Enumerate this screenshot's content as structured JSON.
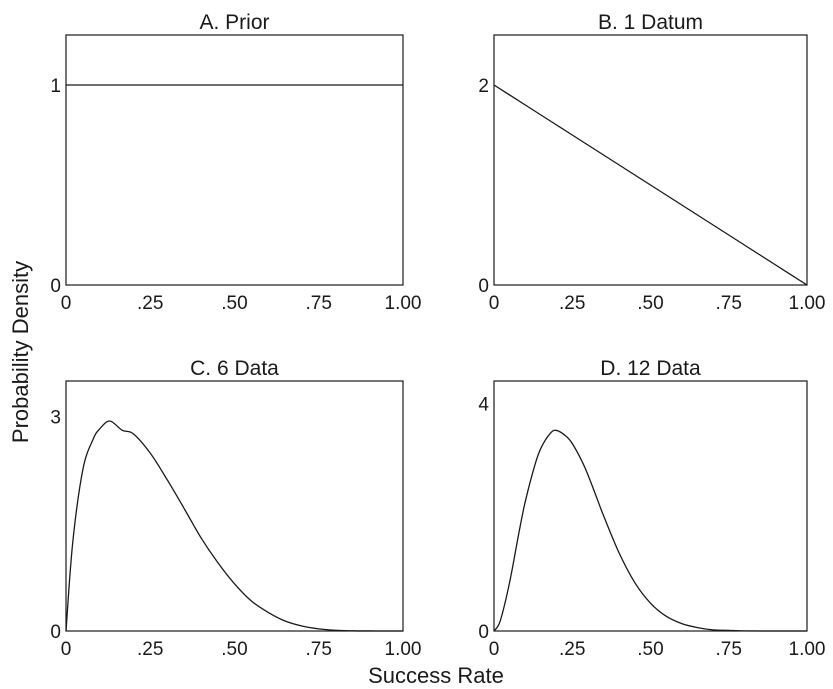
{
  "figure": {
    "ylabel": "Probability Density",
    "xlabel": "Success Rate"
  },
  "chart_data": [
    {
      "type": "line",
      "title": "A. Prior",
      "xlim": [
        0,
        1
      ],
      "ylim": [
        0,
        1.25
      ],
      "x_ticks": [
        0,
        0.25,
        0.5,
        0.75,
        1.0
      ],
      "x_tick_labels": [
        "0",
        ".25",
        ".50",
        ".75",
        "1.00"
      ],
      "y_ticks": [
        0,
        1
      ],
      "y_tick_labels": [
        "0",
        "1"
      ],
      "series": [
        {
          "x": [
            0,
            0.1,
            0.2,
            0.3,
            0.4,
            0.5,
            0.6,
            0.7,
            0.8,
            0.9,
            1.0
          ],
          "y": [
            1,
            1,
            1,
            1,
            1,
            1,
            1,
            1,
            1,
            1,
            1
          ]
        }
      ]
    },
    {
      "type": "line",
      "title": "B. 1 Datum",
      "xlim": [
        0,
        1
      ],
      "ylim": [
        0,
        2.5
      ],
      "x_ticks": [
        0,
        0.25,
        0.5,
        0.75,
        1.0
      ],
      "x_tick_labels": [
        "0",
        ".25",
        ".50",
        ".75",
        "1.00"
      ],
      "y_ticks": [
        0,
        2
      ],
      "y_tick_labels": [
        "0",
        "2"
      ],
      "series": [
        {
          "x": [
            0,
            0.1,
            0.2,
            0.3,
            0.4,
            0.5,
            0.6,
            0.7,
            0.8,
            0.9,
            1.0
          ],
          "y": [
            2.0,
            1.8,
            1.6,
            1.4,
            1.2,
            1.0,
            0.8,
            0.6,
            0.4,
            0.2,
            0.0
          ]
        }
      ]
    },
    {
      "type": "line",
      "title": "C. 6 Data",
      "xlim": [
        0,
        1
      ],
      "ylim": [
        0,
        3.5
      ],
      "x_ticks": [
        0,
        0.25,
        0.5,
        0.75,
        1.0
      ],
      "x_tick_labels": [
        "0",
        ".25",
        ".50",
        ".75",
        "1.00"
      ],
      "y_ticks": [
        0,
        3
      ],
      "y_tick_labels": [
        "0",
        "3"
      ],
      "series": [
        {
          "x": [
            0,
            0.02,
            0.05,
            0.08,
            0.1,
            0.13,
            0.167,
            0.2,
            0.25,
            0.3,
            0.35,
            0.4,
            0.45,
            0.5,
            0.55,
            0.6,
            0.65,
            0.7,
            0.75,
            0.8,
            0.85,
            0.9,
            0.95,
            1.0
          ],
          "y": [
            0,
            1.24,
            2.26,
            2.68,
            2.83,
            2.94,
            2.81,
            2.76,
            2.49,
            2.12,
            1.72,
            1.31,
            0.96,
            0.66,
            0.42,
            0.26,
            0.14,
            0.07,
            0.03,
            0.01,
            0.003,
            0.0006,
            0.0,
            0.0
          ]
        }
      ]
    },
    {
      "type": "line",
      "title": "D. 12 Data",
      "xlim": [
        0,
        1
      ],
      "ylim": [
        0,
        4.4
      ],
      "x_ticks": [
        0,
        0.25,
        0.5,
        0.75,
        1.0
      ],
      "x_tick_labels": [
        "0",
        ".25",
        ".50",
        ".75",
        "1.00"
      ],
      "y_ticks": [
        0,
        4
      ],
      "y_tick_labels": [
        "0",
        "4"
      ],
      "series": [
        {
          "x": [
            0,
            0.02,
            0.05,
            0.08,
            0.1,
            0.13,
            0.15,
            0.18,
            0.2,
            0.23,
            0.25,
            0.28,
            0.3,
            0.33,
            0.35,
            0.4,
            0.45,
            0.5,
            0.55,
            0.6,
            0.65,
            0.7,
            0.75,
            0.8,
            0.9,
            1.0
          ],
          "y": [
            0,
            0.18,
            0.86,
            1.74,
            2.28,
            2.91,
            3.22,
            3.48,
            3.53,
            3.43,
            3.3,
            3.0,
            2.75,
            2.32,
            2.03,
            1.37,
            0.85,
            0.49,
            0.26,
            0.13,
            0.06,
            0.02,
            0.01,
            0.002,
            0.0,
            0.0
          ]
        }
      ]
    }
  ]
}
